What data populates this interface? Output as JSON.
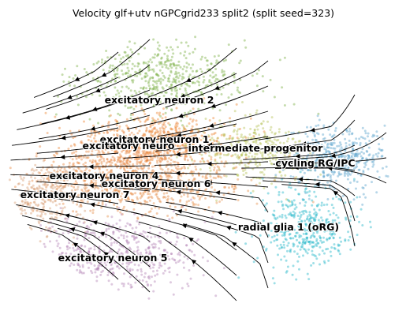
{
  "chart_data": {
    "type": "scatter",
    "title": "Velocity glf+utv nGPCgrid233 split2 (split seed=323)",
    "xlabel": "",
    "ylabel": "",
    "axes_visible": false,
    "grid": false,
    "overlay": "velocity streamlines with arrowheads",
    "clusters": [
      {
        "label": "excitatory neuron 2",
        "color": "#7fb14a"
      },
      {
        "label": "excitatory neuron 1",
        "color": "#ee8a3a"
      },
      {
        "label": "excitatory neuro",
        "color": "#e7884a"
      },
      {
        "label": "intermediate progenitor",
        "color": "#b7c35a"
      },
      {
        "label": "cycling RG/IPC",
        "color": "#5fa6cf"
      },
      {
        "label": "excitatory neuron 4",
        "color": "#e98b46"
      },
      {
        "label": "excitatory neuron 6",
        "color": "#e6924f"
      },
      {
        "label": "excitatory neuron 7",
        "color": "#d9a27a"
      },
      {
        "label": "radial glia 1 (oRG)",
        "color": "#28b7c9"
      },
      {
        "label": "excitatory neuron 5",
        "color": "#b688b8"
      }
    ]
  }
}
